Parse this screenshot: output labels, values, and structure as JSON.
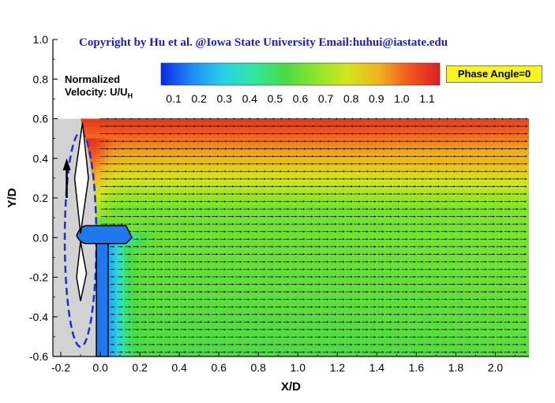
{
  "chart_data": {
    "type": "heatmap",
    "title": "Copyright by Hu et al. @Iowa State University    Email:huhui@iastate.edu",
    "annotation": "Phase Angle=0",
    "colorbar": {
      "label_line1": "Normalized",
      "label_line2": "Velocity: U/U",
      "label_subscript": "H",
      "range": [
        0.05,
        1.15
      ],
      "ticks": [
        0.1,
        0.2,
        0.3,
        0.4,
        0.5,
        0.6,
        0.7,
        0.8,
        0.9,
        1.0,
        1.1
      ],
      "tick_labels": [
        "0.1",
        "0.2",
        "0.3",
        "0.4",
        "0.5",
        "0.6",
        "0.7",
        "0.8",
        "0.9",
        "1.0",
        "1.1"
      ],
      "colormap": [
        "#0a28e6",
        "#1e8cf5",
        "#28d2e6",
        "#32e6a0",
        "#46dc46",
        "#8ce628",
        "#d2e61e",
        "#f0b41e",
        "#f05a1e",
        "#dc1e1e"
      ]
    },
    "xlabel": "X/D",
    "ylabel": "Y/D",
    "xlim": [
      -0.24,
      2.17
    ],
    "ylim": [
      -0.6,
      1.0
    ],
    "xticks": [
      -0.2,
      0.0,
      0.2,
      0.4,
      0.6,
      0.8,
      1.0,
      1.2,
      1.4,
      1.6,
      1.8,
      2.0
    ],
    "xtick_labels": [
      "-0.2",
      "0.0",
      "0.2",
      "0.4",
      "0.6",
      "0.8",
      "1.0",
      "1.2",
      "1.4",
      "1.6",
      "1.8",
      "2.0"
    ],
    "yticks": [
      -0.6,
      -0.4,
      -0.2,
      0.0,
      0.2,
      0.4,
      0.6,
      0.8,
      1.0
    ],
    "ytick_labels": [
      "-0.6",
      "-0.4",
      "-0.2",
      "0.0",
      "0.2",
      "0.4",
      "0.6",
      "0.8",
      "1.0"
    ],
    "field_region": {
      "x": [
        -0.1,
        2.17
      ],
      "y": [
        -0.6,
        0.6
      ]
    },
    "colors": {
      "rotor_region": "#d2d2d2",
      "rotor_outline": "#1e32c8",
      "nacelle": "#1e78f0",
      "title": "#1b1bd6",
      "annotation_bg": "#f7f51f"
    }
  }
}
